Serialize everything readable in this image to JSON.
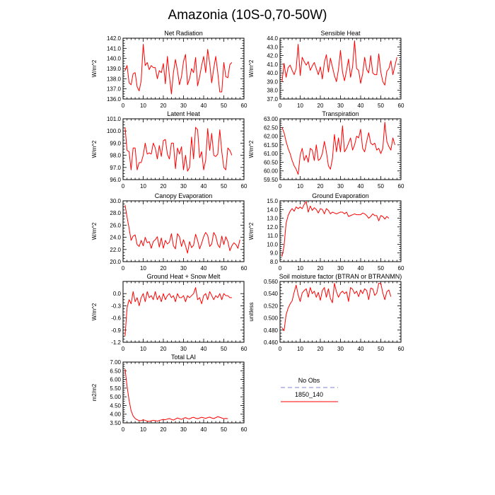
{
  "title": "Amazonia (10S-0,70-50W)",
  "colors": {
    "series": "#ff0000",
    "obs": "#9999dd",
    "frame": "#000000"
  },
  "legend": {
    "obs_label": "No Obs",
    "model_label": "1850_140"
  },
  "chart_data": [
    {
      "type": "line",
      "title": "Net Radiation",
      "ylabel": "W/m^2",
      "xlim": [
        0,
        60
      ],
      "ylim": [
        136.0,
        142.0
      ],
      "x_ticks": [
        0,
        10,
        20,
        30,
        40,
        50,
        60
      ],
      "y_ticks": [
        "136.0",
        "137.0",
        "138.0",
        "139.0",
        "140.0",
        "141.0",
        "142.0"
      ],
      "series": [
        {
          "values": [
            138.8,
            139.3,
            137.6,
            137.4,
            138.5,
            138.6,
            137.2,
            136.8,
            137.8,
            141.4,
            139.3,
            139.6,
            138.9,
            139.3,
            139.1,
            139.1,
            138.0,
            138.8,
            138.6,
            139.5,
            137.5,
            140.2,
            138.3,
            136.5,
            138.6,
            139.9,
            138.8,
            137.4,
            138.2,
            139.7,
            140.4,
            137.4,
            138.0,
            139.0,
            138.6,
            140.1,
            137.3,
            138.2,
            139.3,
            140.2,
            138.6,
            140.9,
            139.5,
            137.6,
            139.0,
            140.2,
            138.6,
            136.7,
            136.7,
            139.6,
            138.2,
            138.1,
            139.4,
            139.6
          ]
        }
      ]
    },
    {
      "type": "line",
      "title": "Sensible Heat",
      "ylabel": "W/m^2",
      "xlim": [
        0,
        60
      ],
      "ylim": [
        37.0,
        44.0
      ],
      "x_ticks": [
        0,
        10,
        20,
        30,
        40,
        50,
        60
      ],
      "y_ticks": [
        "37.0",
        "38.0",
        "39.0",
        "40.0",
        "41.0",
        "42.0",
        "43.0",
        "44.0"
      ],
      "series": [
        {
          "values": [
            39.0,
            41.1,
            39.5,
            40.6,
            40.9,
            40.3,
            39.8,
            40.5,
            43.3,
            39.7,
            41.8,
            41.3,
            40.9,
            41.3,
            40.3,
            40.8,
            41.2,
            40.5,
            39.8,
            40.7,
            39.3,
            41.2,
            42.1,
            40.1,
            41.7,
            40.7,
            39.7,
            39.0,
            40.4,
            42.6,
            40.1,
            39.1,
            40.3,
            41.6,
            39.5,
            40.7,
            43.7,
            40.5,
            40.3,
            38.8,
            39.9,
            41.8,
            40.4,
            40.0,
            42.0,
            40.0,
            39.8,
            39.8,
            42.2,
            40.1,
            39.0,
            38.6,
            40.2,
            40.5,
            41.4,
            39.8,
            40.8,
            41.8
          ]
        }
      ]
    },
    {
      "type": "line",
      "title": "Latent Heat",
      "ylabel": "W/m^2",
      "xlim": [
        0,
        60
      ],
      "ylim": [
        96.0,
        101.0
      ],
      "x_ticks": [
        0,
        10,
        20,
        30,
        40,
        50,
        60
      ],
      "y_ticks": [
        "96.0",
        "97.0",
        "98.0",
        "99.0",
        "100.0",
        "101.0"
      ],
      "series": [
        {
          "values": [
            100.3,
            98.4,
            98.3,
            96.8,
            98.6,
            98.6,
            96.8,
            97.4,
            97.4,
            98.0,
            99.0,
            98.1,
            98.2,
            98.1,
            99.0,
            98.6,
            97.7,
            98.8,
            97.9,
            99.2,
            99.3,
            98.1,
            97.7,
            99.0,
            99.0,
            96.9,
            98.6,
            98.1,
            98.7,
            96.8,
            98.0,
            96.7,
            97.0,
            99.5,
            97.7,
            100.3,
            100.1,
            97.8,
            98.3,
            96.8,
            97.6,
            100.2,
            98.4,
            99.8,
            98.0,
            97.9,
            98.1,
            100.1,
            98.3,
            97.0,
            96.8,
            98.6,
            98.4,
            98.0
          ]
        }
      ]
    },
    {
      "type": "line",
      "title": "Transpiration",
      "ylabel": "W/m^2",
      "xlim": [
        0,
        60
      ],
      "ylim": [
        59.5,
        63.0
      ],
      "x_ticks": [
        0,
        10,
        20,
        30,
        40,
        50,
        60
      ],
      "y_ticks": [
        "59.50",
        "60.00",
        "60.50",
        "61.00",
        "61.50",
        "62.00",
        "62.50",
        "63.00"
      ],
      "series": [
        {
          "values": [
            62.5,
            62.2,
            61.7,
            61.3,
            61.0,
            60.6,
            60.3,
            60.1,
            59.8,
            60.9,
            61.3,
            60.6,
            60.9,
            60.5,
            61.3,
            61.2,
            60.6,
            61.5,
            60.6,
            60.7,
            61.0,
            61.7,
            61.1,
            60.3,
            60.1,
            60.7,
            62.1,
            61.1,
            61.9,
            61.1,
            62.6,
            61.1,
            61.3,
            61.6,
            61.9,
            61.2,
            61.5,
            62.0,
            61.9,
            62.4,
            61.3,
            61.1,
            61.7,
            62.2,
            61.6,
            61.5,
            61.6,
            61.2,
            61.3,
            61.0,
            61.3,
            62.8,
            61.7,
            61.4,
            61.2,
            61.9,
            61.5
          ]
        }
      ]
    },
    {
      "type": "line",
      "title": "Canopy Evaporation",
      "ylabel": "W/m^2",
      "xlim": [
        0,
        60
      ],
      "ylim": [
        20.0,
        30.0
      ],
      "x_ticks": [
        0,
        10,
        20,
        30,
        40,
        50,
        60
      ],
      "y_ticks": [
        "20.0",
        "22.0",
        "24.0",
        "26.0",
        "28.0",
        "30.0"
      ],
      "series": [
        {
          "values": [
            29.3,
            27.3,
            25.5,
            23.5,
            24.2,
            24.4,
            22.8,
            22.5,
            23.5,
            22.6,
            24.0,
            23.1,
            23.3,
            22.2,
            23.3,
            23.6,
            24.1,
            22.4,
            23.9,
            22.2,
            23.5,
            22.9,
            23.2,
            24.6,
            22.6,
            22.1,
            24.6,
            24.1,
            22.5,
            23.6,
            22.6,
            21.4,
            23.3,
            22.3,
            22.7,
            24.5,
            23.5,
            22.1,
            23.0,
            24.1,
            24.8,
            24.3,
            22.5,
            22.9,
            24.8,
            24.2,
            22.8,
            22.3,
            24.2,
            22.8,
            24.1,
            23.3,
            21.8,
            22.6,
            23.1,
            22.8,
            22.2,
            23.6
          ]
        }
      ]
    },
    {
      "type": "line",
      "title": "Ground Evaporation",
      "ylabel": "W/m^2",
      "xlim": [
        0,
        60
      ],
      "ylim": [
        8.0,
        15.0
      ],
      "x_ticks": [
        0,
        10,
        20,
        30,
        40,
        50,
        60
      ],
      "y_ticks": [
        "8.0",
        "9.0",
        "10.0",
        "11.0",
        "12.0",
        "13.0",
        "14.0",
        "15.0"
      ],
      "series": [
        {
          "values": [
            8.6,
            9.8,
            12.4,
            13.3,
            13.8,
            14.1,
            13.8,
            14.3,
            14.1,
            14.3,
            14.1,
            14.6,
            14.9,
            13.7,
            14.4,
            13.9,
            14.2,
            14.0,
            13.6,
            14.1,
            14.0,
            13.5,
            14.1,
            13.9,
            13.5,
            13.7,
            13.6,
            13.5,
            13.6,
            13.7,
            13.7,
            13.5,
            13.7,
            13.2,
            13.3,
            13.4,
            13.5,
            13.4,
            13.4,
            13.4,
            13.6,
            13.5,
            13.3,
            13.0,
            13.2,
            13.5,
            13.3,
            13.3,
            12.7,
            13.3,
            13.2,
            12.9,
            13.2,
            13.0
          ]
        }
      ]
    },
    {
      "type": "line",
      "title": "Ground Heat + Snow Melt",
      "ylabel": "W/m^2",
      "xlim": [
        0,
        60
      ],
      "ylim": [
        -1.2,
        0.3
      ],
      "x_ticks": [
        0,
        10,
        20,
        30,
        40,
        50,
        60
      ],
      "y_ticks": [
        "-1.2",
        "-0.9",
        "-0.6",
        "-0.3",
        "0.0"
      ],
      "series": [
        {
          "values": [
            -1.05,
            -0.35,
            -0.15,
            -0.25,
            0.05,
            -0.2,
            -0.1,
            -0.3,
            -0.1,
            0.0,
            -0.2,
            0.05,
            -0.1,
            -0.05,
            -0.15,
            0.05,
            -0.15,
            -0.05,
            -0.2,
            0.0,
            -0.15,
            -0.05,
            0.0,
            -0.1,
            -0.05,
            -0.2,
            0.0,
            -0.1,
            -0.1,
            -0.05,
            -0.2,
            -0.05,
            -0.1,
            -0.05,
            0.0,
            0.15,
            -0.15,
            -0.1,
            -0.25,
            -0.05,
            0.0,
            -0.15,
            0.05,
            -0.05,
            -0.15,
            -0.05,
            -0.1,
            0.0,
            -0.15,
            0.0,
            -0.05,
            -0.05,
            -0.1,
            -0.1
          ]
        }
      ]
    },
    {
      "type": "line",
      "title": "Soil moisture factor (BTRAN or BTRANMN)",
      "ylabel": "unitless",
      "xlim": [
        0,
        60
      ],
      "ylim": [
        0.46,
        0.56
      ],
      "x_ticks": [
        0,
        10,
        20,
        30,
        40,
        50,
        60
      ],
      "y_ticks": [
        "0.460",
        "0.480",
        "0.500",
        "0.520",
        "0.540",
        "0.560"
      ],
      "series": [
        {
          "values": [
            0.484,
            0.479,
            0.505,
            0.516,
            0.523,
            0.528,
            0.542,
            0.554,
            0.538,
            0.527,
            0.541,
            0.545,
            0.548,
            0.534,
            0.55,
            0.54,
            0.544,
            0.534,
            0.542,
            0.529,
            0.545,
            0.55,
            0.534,
            0.548,
            0.532,
            0.525,
            0.557,
            0.543,
            0.534,
            0.541,
            0.544,
            0.54,
            0.543,
            0.527,
            0.55,
            0.547,
            0.54,
            0.544,
            0.535,
            0.546,
            0.54,
            0.548,
            0.545,
            0.53,
            0.549,
            0.548,
            0.537,
            0.541,
            0.557,
            0.557,
            0.541,
            0.53,
            0.543,
            0.546,
            0.535
          ]
        }
      ]
    },
    {
      "type": "line",
      "title": "Total LAI",
      "ylabel": "m2/m2",
      "xlim": [
        0,
        60
      ],
      "ylim": [
        3.5,
        7.0
      ],
      "x_ticks": [
        0,
        10,
        20,
        30,
        40,
        50,
        60
      ],
      "y_ticks": [
        "3.50",
        "4.00",
        "4.50",
        "5.00",
        "5.50",
        "6.00",
        "6.50",
        "7.00"
      ],
      "series": [
        {
          "values": [
            6.6,
            5.6,
            4.8,
            4.2,
            3.9,
            3.75,
            3.68,
            3.63,
            3.62,
            3.68,
            3.64,
            3.6,
            3.58,
            3.62,
            3.65,
            3.63,
            3.6,
            3.64,
            3.67,
            3.7,
            3.68,
            3.72,
            3.75,
            3.7,
            3.66,
            3.72,
            3.78,
            3.74,
            3.7,
            3.76,
            3.8,
            3.75,
            3.73,
            3.79,
            3.82,
            3.77,
            3.74,
            3.78,
            3.82,
            3.79,
            3.76,
            3.8,
            3.83,
            3.78,
            3.75,
            3.8,
            3.86,
            3.82,
            3.78,
            3.74,
            3.76,
            3.74
          ]
        }
      ]
    }
  ]
}
